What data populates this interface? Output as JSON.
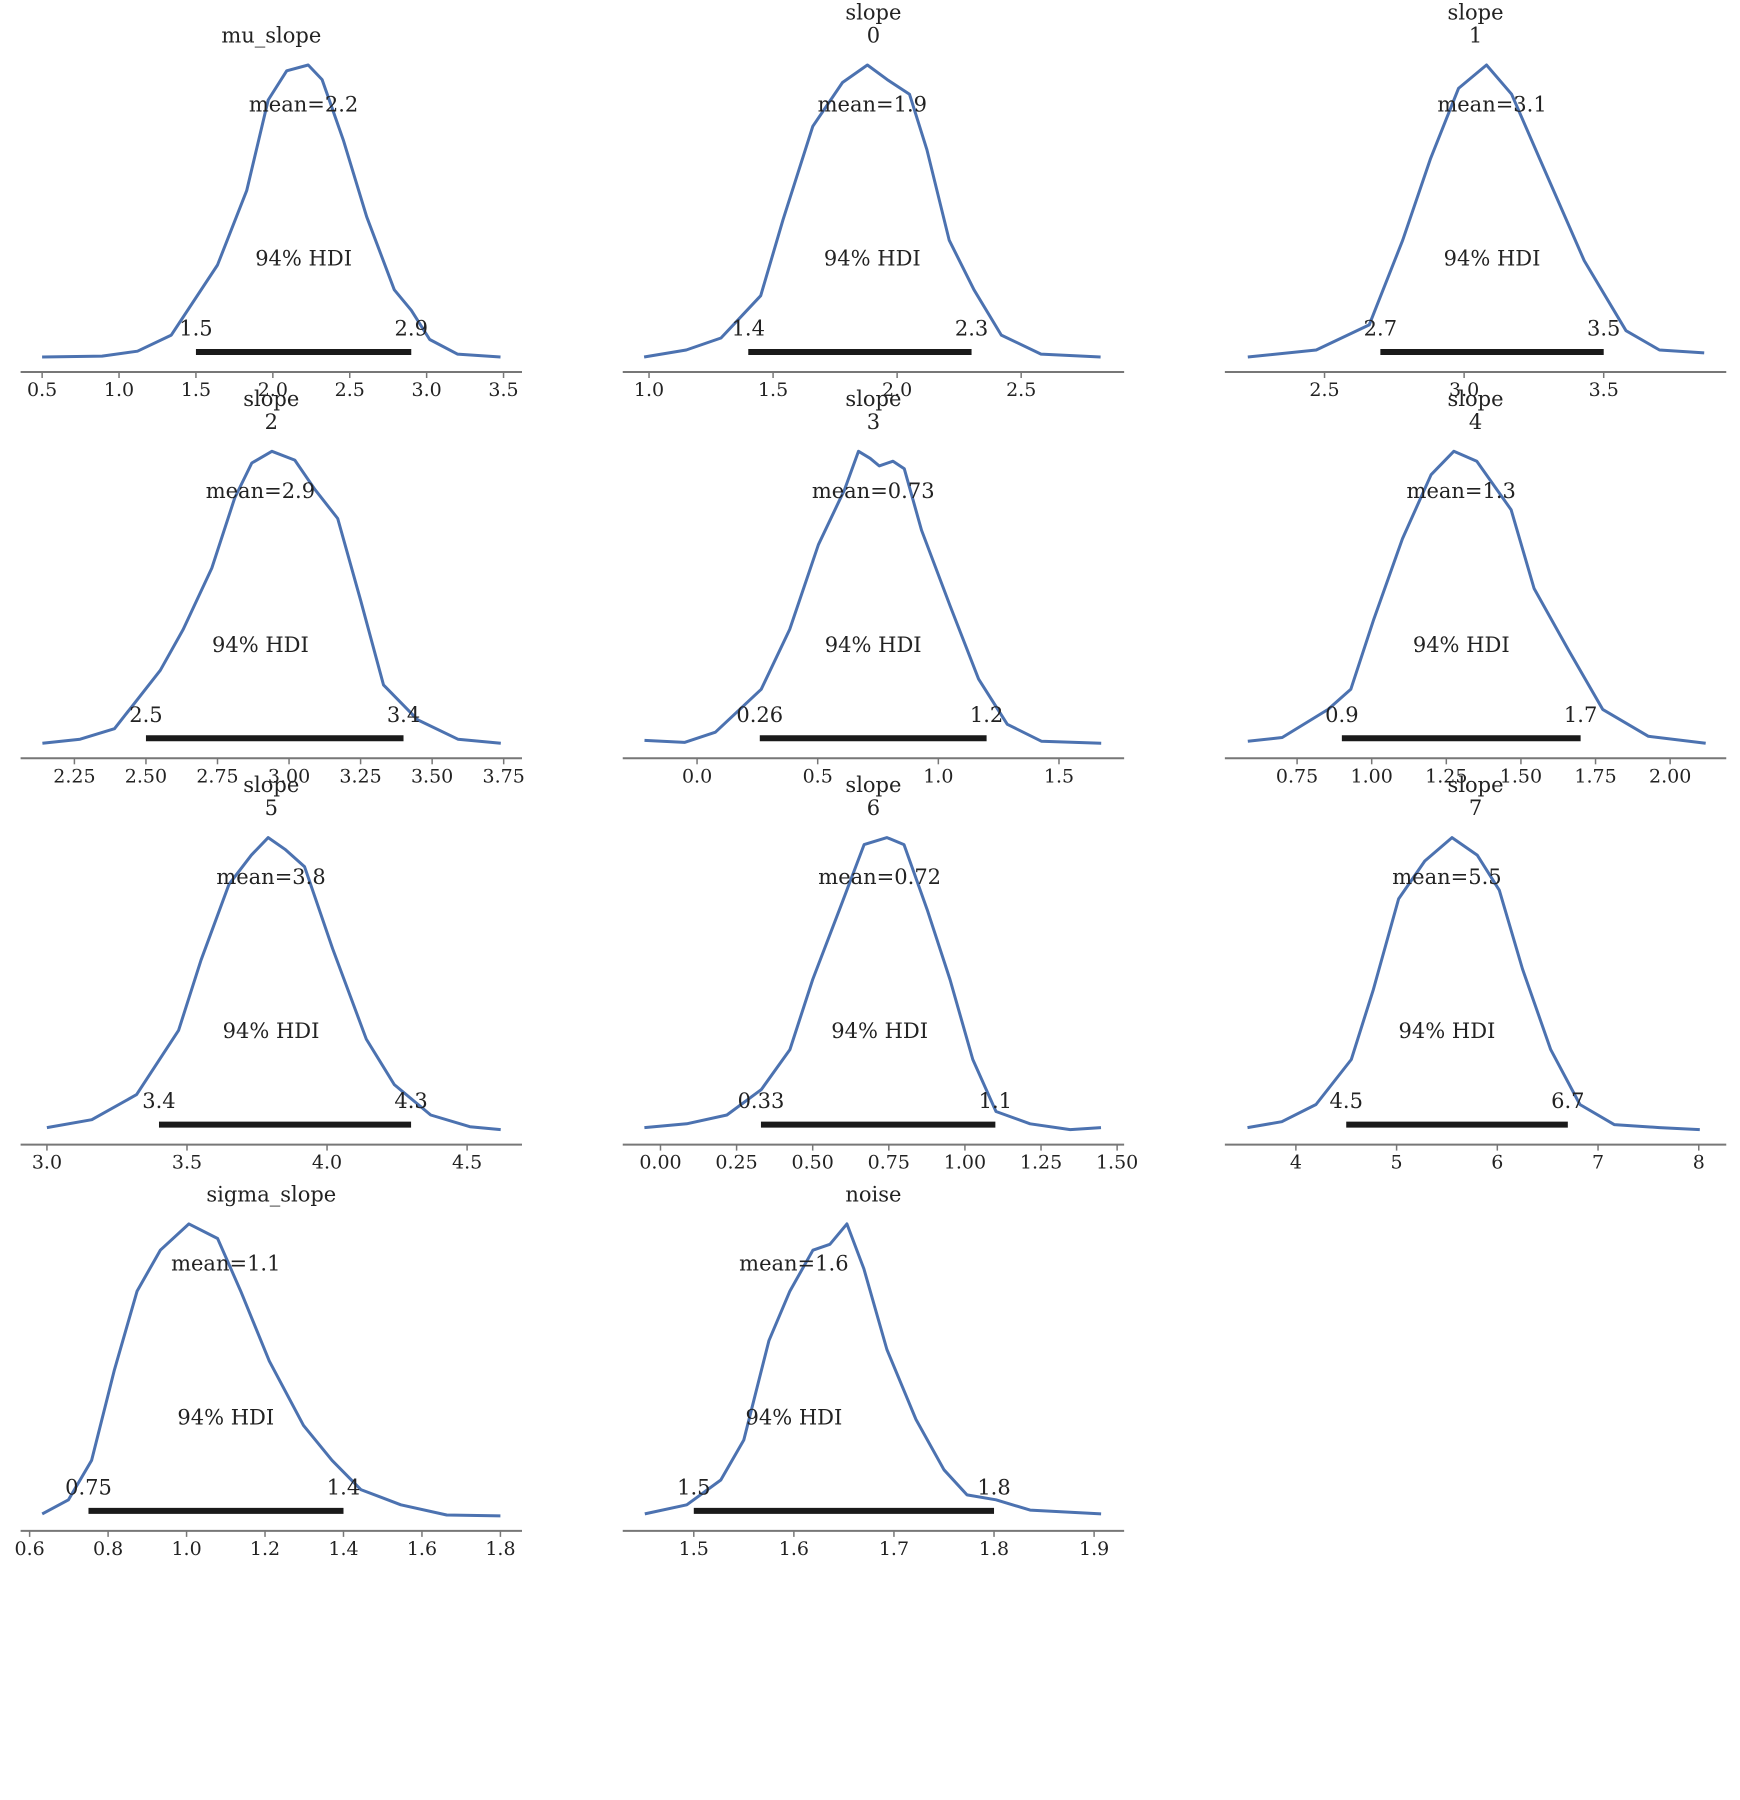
{
  "chart_data": [
    {
      "type": "density",
      "title": [
        "mu_slope"
      ],
      "color": "#4c72b0",
      "x": [
        0.5,
        0.89,
        1.12,
        1.34,
        1.64,
        1.83,
        1.97,
        2.09,
        2.23,
        2.32,
        2.46,
        2.61,
        2.79,
        2.9,
        3.02,
        3.2,
        3.48
      ],
      "values": [
        0,
        0.003,
        0.02,
        0.075,
        0.315,
        0.57,
        0.88,
        0.98,
        1.0,
        0.95,
        0.74,
        0.48,
        0.23,
        0.16,
        0.06,
        0.01,
        0
      ],
      "xlim": [
        0.36,
        3.62
      ],
      "ylim": [
        0,
        1
      ],
      "xticks": [
        0.5,
        {
          "value": 1,
          "label": "1.0"
        },
        1.5,
        {
          "value": 2,
          "label": "2.0"
        },
        2.5,
        {
          "value": 3,
          "label": "3.0"
        },
        3.5
      ],
      "mean": {
        "value": 2.2,
        "label": "mean=2.2"
      },
      "hdi": [
        1.5,
        2.9
      ],
      "hdi_label": "94% HDI"
    },
    {
      "type": "density",
      "title": [
        "slope",
        "0"
      ],
      "color": "#4c72b0",
      "x": [
        0.98,
        1.15,
        1.29,
        1.45,
        1.54,
        1.66,
        1.78,
        1.88,
        1.96,
        2.05,
        2.12,
        2.21,
        2.31,
        2.42,
        2.58,
        2.82
      ],
      "values": [
        0,
        0.024,
        0.065,
        0.21,
        0.47,
        0.79,
        0.94,
        1.0,
        0.95,
        0.9,
        0.71,
        0.4,
        0.23,
        0.075,
        0.01,
        0
      ],
      "xlim": [
        0.894,
        2.915
      ],
      "ylim": [
        0,
        1
      ],
      "xticks": [
        {
          "value": 1,
          "label": "1.0"
        },
        1.5,
        {
          "value": 2,
          "label": "2.0"
        },
        2.5
      ],
      "mean": {
        "value": 1.9,
        "label": "mean=1.9"
      },
      "hdi": [
        1.4,
        2.3
      ],
      "hdi_label": "94% HDI"
    },
    {
      "type": "density",
      "title": [
        "slope",
        "1"
      ],
      "color": "#4c72b0",
      "x": [
        2.225,
        2.47,
        2.66,
        2.78,
        2.88,
        2.98,
        3.08,
        3.17,
        3.27,
        3.43,
        3.58,
        3.7,
        3.86
      ],
      "values": [
        0,
        0.024,
        0.11,
        0.4,
        0.68,
        0.92,
        1.0,
        0.9,
        0.68,
        0.33,
        0.09,
        0.024,
        0.014
      ],
      "xlim": [
        2.143,
        3.939
      ],
      "ylim": [
        0,
        1
      ],
      "xticks": [
        2.5,
        {
          "value": 3,
          "label": "3.0"
        },
        3.5
      ],
      "mean": {
        "value": 3.1,
        "label": "mean=3.1"
      },
      "hdi": [
        2.7,
        3.5
      ],
      "hdi_label": "94% HDI"
    },
    {
      "type": "density",
      "title": [
        "slope",
        "2"
      ],
      "color": "#4c72b0",
      "x": [
        2.138,
        2.27,
        2.39,
        2.55,
        2.63,
        2.73,
        2.81,
        2.87,
        2.94,
        3.02,
        3.09,
        3.17,
        3.25,
        3.33,
        3.45,
        3.59,
        3.74
      ],
      "values": [
        0,
        0.014,
        0.05,
        0.25,
        0.39,
        0.6,
        0.84,
        0.96,
        1.0,
        0.97,
        0.87,
        0.77,
        0.49,
        0.2,
        0.08,
        0.014,
        0
      ],
      "xlim": [
        2.062,
        3.814
      ],
      "ylim": [
        0,
        1
      ],
      "xticks": [
        2.25,
        {
          "value": 2.5,
          "label": "2.50"
        },
        2.75,
        {
          "value": 3,
          "label": "3.00"
        },
        3.25,
        {
          "value": 3.5,
          "label": "3.50"
        },
        3.75
      ],
      "mean": {
        "value": 2.9,
        "label": "mean=2.9"
      },
      "hdi": [
        2.5,
        3.4
      ],
      "hdi_label": "94% HDI"
    },
    {
      "type": "density",
      "title": [
        "slope",
        "3"
      ],
      "color": "#4c72b0",
      "x": [
        -0.218,
        -0.052,
        0.076,
        0.266,
        0.384,
        0.503,
        0.612,
        0.669,
        0.717,
        0.755,
        0.812,
        0.859,
        0.93,
        1.049,
        1.167,
        1.286,
        1.428,
        1.675
      ],
      "values": [
        0.01,
        0.003,
        0.038,
        0.185,
        0.39,
        0.68,
        0.87,
        1.0,
        0.976,
        0.95,
        0.966,
        0.94,
        0.73,
        0.47,
        0.22,
        0.065,
        0.007,
        0
      ],
      "xlim": [
        -0.308,
        1.77
      ],
      "ylim": [
        0,
        1
      ],
      "xticks": [
        {
          "value": 0,
          "label": "0.0"
        },
        0.5,
        {
          "value": 1,
          "label": "1.0"
        },
        1.5
      ],
      "mean": {
        "value": 0.73,
        "label": "mean=0.73"
      },
      "hdi": [
        0.26,
        1.2
      ],
      "hdi_label": "94% HDI"
    },
    {
      "type": "density",
      "title": [
        "slope",
        "4"
      ],
      "color": "#4c72b0",
      "x": [
        0.585,
        0.7,
        0.854,
        0.93,
        1.007,
        1.103,
        1.199,
        1.275,
        1.352,
        1.467,
        1.544,
        1.659,
        1.774,
        1.927,
        2.119
      ],
      "values": [
        0.007,
        0.02,
        0.116,
        0.185,
        0.425,
        0.7,
        0.92,
        1.0,
        0.966,
        0.8,
        0.53,
        0.32,
        0.116,
        0.024,
        0
      ],
      "xlim": [
        0.508,
        2.188
      ],
      "ylim": [
        0,
        1
      ],
      "xticks": [
        0.75,
        {
          "value": 1,
          "label": "1.00"
        },
        1.25,
        {
          "value": 1.5,
          "label": "1.50"
        },
        1.75,
        {
          "value": 2,
          "label": "2.00"
        }
      ],
      "mean": {
        "value": 1.3,
        "label": "mean=1.3"
      },
      "hdi": [
        0.9,
        1.7
      ],
      "hdi_label": "94% HDI"
    },
    {
      "type": "density",
      "title": [
        "slope",
        "5"
      ],
      "color": "#4c72b0",
      "x": [
        3.0,
        3.16,
        3.32,
        3.47,
        3.55,
        3.65,
        3.73,
        3.79,
        3.85,
        3.92,
        4.02,
        4.14,
        4.24,
        4.37,
        4.51,
        4.62
      ],
      "values": [
        0.007,
        0.034,
        0.12,
        0.34,
        0.58,
        0.84,
        0.94,
        1.0,
        0.96,
        0.9,
        0.62,
        0.31,
        0.154,
        0.05,
        0.01,
        0
      ],
      "xlim": [
        2.906,
        4.696
      ],
      "ylim": [
        0,
        1
      ],
      "xticks": [
        {
          "value": 3,
          "label": "3.0"
        },
        3.5,
        {
          "value": 4,
          "label": "4.0"
        },
        4.5
      ],
      "mean": {
        "value": 3.8,
        "label": "mean=3.8"
      },
      "hdi": [
        3.4,
        4.3
      ],
      "hdi_label": "94% HDI"
    },
    {
      "type": "density",
      "title": [
        "slope",
        "6"
      ],
      "color": "#4c72b0",
      "x": [
        -0.053,
        0.086,
        0.218,
        0.331,
        0.425,
        0.5,
        0.594,
        0.669,
        0.744,
        0.8,
        0.876,
        0.951,
        1.026,
        1.102,
        1.214,
        1.346,
        1.447
      ],
      "values": [
        0.007,
        0.02,
        0.05,
        0.137,
        0.274,
        0.514,
        0.77,
        0.976,
        1.0,
        0.976,
        0.753,
        0.514,
        0.24,
        0.062,
        0.02,
        0,
        0.007
      ],
      "xlim": [
        -0.124,
        1.523
      ],
      "ylim": [
        0,
        1
      ],
      "xticks": [
        {
          "value": 0,
          "label": "0.00"
        },
        0.25,
        {
          "value": 0.5,
          "label": "0.50"
        },
        0.75,
        {
          "value": 1,
          "label": "1.00"
        },
        1.25,
        {
          "value": 1.5,
          "label": "1.50"
        }
      ],
      "mean": {
        "value": 0.72,
        "label": "mean=0.72"
      },
      "hdi": [
        0.33,
        1.1
      ],
      "hdi_label": "94% HDI"
    },
    {
      "type": "density",
      "title": [
        "slope",
        "7"
      ],
      "color": "#4c72b0",
      "x": [
        3.52,
        3.86,
        4.2,
        4.55,
        4.77,
        5.02,
        5.28,
        5.55,
        5.8,
        6.02,
        6.25,
        6.53,
        6.82,
        7.16,
        7.61,
        8.01
      ],
      "values": [
        0.007,
        0.027,
        0.086,
        0.24,
        0.48,
        0.79,
        0.92,
        1.0,
        0.94,
        0.82,
        0.55,
        0.274,
        0.086,
        0.017,
        0.007,
        0
      ],
      "xlim": [
        3.295,
        8.273
      ],
      "ylim": [
        0,
        1
      ],
      "xticks": [
        4,
        5,
        6,
        7,
        8
      ],
      "mean": {
        "value": 5.5,
        "label": "mean=5.5"
      },
      "hdi": [
        4.5,
        6.7
      ],
      "hdi_label": "94% HDI"
    },
    {
      "type": "density",
      "title": [
        "sigma_slope"
      ],
      "color": "#4c72b0",
      "x": [
        0.632,
        0.699,
        0.758,
        0.816,
        0.874,
        0.933,
        1.006,
        1.079,
        1.138,
        1.211,
        1.298,
        1.371,
        1.444,
        1.546,
        1.663,
        1.8
      ],
      "values": [
        0.007,
        0.055,
        0.19,
        0.5,
        0.77,
        0.91,
        1.0,
        0.95,
        0.77,
        0.53,
        0.31,
        0.19,
        0.09,
        0.038,
        0.003,
        0
      ],
      "xlim": [
        0.577,
        1.855
      ],
      "ylim": [
        0,
        1
      ],
      "xticks": [
        0.6,
        0.8,
        {
          "value": 1,
          "label": "1.0"
        },
        1.2,
        1.4,
        1.6,
        1.8
      ],
      "mean": {
        "value": 1.1,
        "label": "mean=1.1"
      },
      "hdi": [
        0.75,
        1.4
      ],
      "hdi_label": "94% HDI"
    },
    {
      "type": "density",
      "title": [
        "noise"
      ],
      "color": "#4c72b0",
      "x": [
        1.451,
        1.493,
        1.527,
        1.55,
        1.575,
        1.596,
        1.619,
        1.636,
        1.653,
        1.67,
        1.693,
        1.722,
        1.75,
        1.773,
        1.802,
        1.836,
        1.907
      ],
      "values": [
        0.007,
        0.038,
        0.123,
        0.26,
        0.6,
        0.77,
        0.91,
        0.93,
        1.0,
        0.846,
        0.57,
        0.33,
        0.158,
        0.072,
        0.055,
        0.02,
        0.007
      ],
      "xlim": [
        1.429,
        1.93
      ],
      "ylim": [
        0,
        1
      ],
      "xticks": [
        1.5,
        1.6,
        1.7,
        1.8,
        1.9
      ],
      "mean": {
        "value": 1.6,
        "label": "mean=1.6"
      },
      "hdi": [
        1.5,
        1.8
      ],
      "hdi_label": "94% HDI"
    }
  ]
}
